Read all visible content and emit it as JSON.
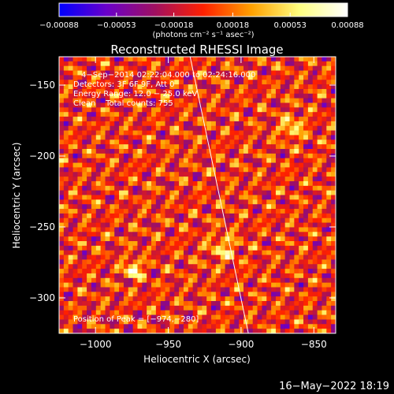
{
  "chart_data": {
    "type": "heatmap",
    "title": "Reconstructed RHESSI Image",
    "xlabel": "Heliocentric X (arcsec)",
    "ylabel": "Heliocentric Y (arcsec)",
    "xlim": [
      -1025,
      -835
    ],
    "ylim": [
      -325,
      -130
    ],
    "x_ticks": [
      -1000,
      -950,
      -900,
      -850
    ],
    "y_ticks": [
      -150,
      -200,
      -250,
      -300
    ],
    "x_tick_labels": [
      "−1000",
      "−950",
      "−900",
      "−850"
    ],
    "y_tick_labels": [
      "−150",
      "−200",
      "−250",
      "−300"
    ],
    "colorbar": {
      "range": [
        -0.00088,
        0.00088
      ],
      "ticks": [
        -0.00088,
        -0.00053,
        -0.00018,
        0.00018,
        0.00053,
        0.00088
      ],
      "tick_labels": [
        "−0.00088",
        "−0.00053",
        "−0.00018",
        "0.00018",
        "0.00053",
        "0.00088"
      ],
      "unit_label": "(photons cm⁻² s⁻¹ asec⁻²)",
      "colors": [
        "#0000ff",
        "#6a00c8",
        "#a01060",
        "#ff2000",
        "#ffa000",
        "#ffff80",
        "#ffffff"
      ]
    },
    "annotations": [
      "4−Sep−2014 02:22:04.000 to 02:24:16.000",
      "Detectors: 3F 6F 9F, Att 0",
      "Energy Range: 12.0 − 25.0 keV",
      "Clean    Total counts: 755"
    ],
    "peak_label": "Position of Peak = [−974,−280]",
    "peak": [
      -974,
      -280
    ],
    "limb_line": [
      [
        -935,
        -130
      ],
      [
        -895,
        -325
      ]
    ],
    "grid": false
  },
  "footer": {
    "timestamp": "16−May−2022 18:19"
  }
}
